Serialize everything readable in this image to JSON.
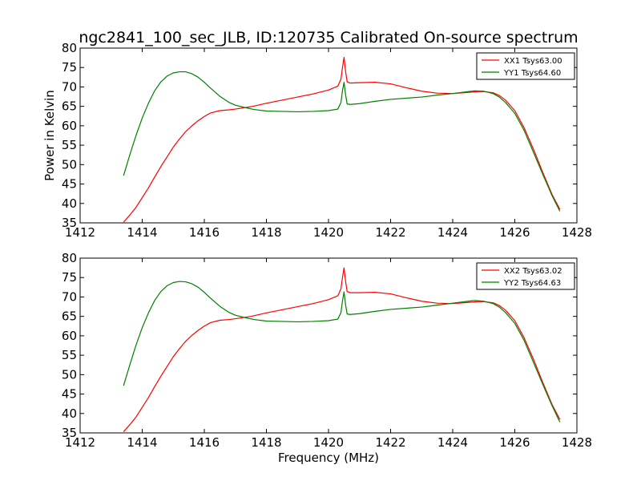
{
  "figure": {
    "title": "ngc2841_100_sec_JLB, ID:120735 Calibrated On-source spectrum"
  },
  "colors": {
    "xx": "#ff0000",
    "yy": "#008000"
  },
  "chart_data": [
    {
      "type": "line",
      "title": "ngc2841_100_sec_JLB, ID:120735 Calibrated On-source spectrum",
      "xlabel": "",
      "ylabel": "Power in Kelvin",
      "xlim": [
        1412,
        1428
      ],
      "ylim": [
        35,
        80
      ],
      "xticks": [
        1412,
        1414,
        1416,
        1418,
        1420,
        1422,
        1424,
        1426,
        1428
      ],
      "yticks": [
        35,
        40,
        45,
        50,
        55,
        60,
        65,
        70,
        75,
        80
      ],
      "grid": false,
      "legend": "top-right",
      "series": [
        {
          "name": "XX1 Tsys63.00",
          "color": "#ff0000",
          "x": [
            1413.4,
            1413.6,
            1413.8,
            1414.0,
            1414.2,
            1414.4,
            1414.6,
            1414.8,
            1415.0,
            1415.2,
            1415.4,
            1415.6,
            1415.8,
            1416.0,
            1416.2,
            1416.5,
            1416.8,
            1417.0,
            1417.5,
            1418.0,
            1418.5,
            1419.0,
            1419.5,
            1420.0,
            1420.3,
            1420.4,
            1420.45,
            1420.5,
            1420.55,
            1420.6,
            1420.7,
            1421.0,
            1421.5,
            1422.0,
            1422.5,
            1423.0,
            1423.5,
            1424.0,
            1424.5,
            1424.8,
            1425.0,
            1425.3,
            1425.5,
            1425.7,
            1426.0,
            1426.3,
            1426.6,
            1426.9,
            1427.2,
            1427.45
          ],
          "y": [
            35.2,
            37.0,
            39.0,
            41.5,
            44.0,
            46.8,
            49.5,
            52.0,
            54.5,
            56.6,
            58.5,
            60.0,
            61.3,
            62.4,
            63.3,
            63.9,
            64.1,
            64.3,
            64.9,
            65.8,
            66.6,
            67.4,
            68.2,
            69.2,
            70.2,
            72.0,
            75.0,
            77.6,
            74.0,
            71.3,
            71.0,
            71.1,
            71.2,
            70.8,
            69.8,
            68.9,
            68.4,
            68.3,
            68.6,
            68.8,
            68.8,
            68.5,
            67.8,
            66.6,
            63.9,
            59.5,
            54.0,
            48.0,
            42.3,
            38.5
          ]
        },
        {
          "name": "YY1 Tsys64.60",
          "color": "#008000",
          "x": [
            1413.4,
            1413.6,
            1413.8,
            1414.0,
            1414.2,
            1414.4,
            1414.6,
            1414.8,
            1415.0,
            1415.2,
            1415.4,
            1415.6,
            1415.8,
            1416.0,
            1416.2,
            1416.5,
            1416.8,
            1417.0,
            1417.3,
            1417.6,
            1418.0,
            1418.5,
            1419.0,
            1419.5,
            1420.0,
            1420.3,
            1420.4,
            1420.45,
            1420.5,
            1420.55,
            1420.6,
            1420.7,
            1421.0,
            1421.5,
            1422.0,
            1422.5,
            1423.0,
            1423.5,
            1424.0,
            1424.5,
            1424.7,
            1425.0,
            1425.3,
            1425.5,
            1425.7,
            1426.0,
            1426.3,
            1426.6,
            1426.9,
            1427.2,
            1427.45
          ],
          "y": [
            47.2,
            52.5,
            57.5,
            62.0,
            65.8,
            69.0,
            71.3,
            72.8,
            73.6,
            73.9,
            73.9,
            73.4,
            72.5,
            71.2,
            69.7,
            67.6,
            66.0,
            65.3,
            64.7,
            64.2,
            63.8,
            63.7,
            63.6,
            63.7,
            63.9,
            64.3,
            66.0,
            69.0,
            71.2,
            68.0,
            65.6,
            65.5,
            65.7,
            66.3,
            66.8,
            67.1,
            67.4,
            67.9,
            68.3,
            68.8,
            69.0,
            68.9,
            68.3,
            67.4,
            66.0,
            63.2,
            58.8,
            53.2,
            47.5,
            42.0,
            38.0
          ]
        }
      ]
    },
    {
      "type": "line",
      "title": "",
      "xlabel": "Frequency (MHz)",
      "ylabel": "",
      "xlim": [
        1412,
        1428
      ],
      "ylim": [
        35,
        80
      ],
      "xticks": [
        1412,
        1414,
        1416,
        1418,
        1420,
        1422,
        1424,
        1426,
        1428
      ],
      "yticks": [
        35,
        40,
        45,
        50,
        55,
        60,
        65,
        70,
        75,
        80
      ],
      "grid": false,
      "legend": "top-right",
      "series": [
        {
          "name": "XX2 Tsys63.02",
          "color": "#ff0000",
          "x": [
            1413.4,
            1413.6,
            1413.8,
            1414.0,
            1414.2,
            1414.4,
            1414.6,
            1414.8,
            1415.0,
            1415.2,
            1415.4,
            1415.6,
            1415.8,
            1416.0,
            1416.2,
            1416.5,
            1416.8,
            1417.0,
            1417.5,
            1418.0,
            1418.5,
            1419.0,
            1419.5,
            1420.0,
            1420.3,
            1420.4,
            1420.45,
            1420.5,
            1420.55,
            1420.6,
            1420.7,
            1421.0,
            1421.5,
            1422.0,
            1422.5,
            1423.0,
            1423.5,
            1424.0,
            1424.5,
            1424.8,
            1425.0,
            1425.3,
            1425.5,
            1425.7,
            1426.0,
            1426.3,
            1426.6,
            1426.9,
            1427.2,
            1427.45
          ],
          "y": [
            35.3,
            37.1,
            39.1,
            41.6,
            44.1,
            46.9,
            49.6,
            52.1,
            54.6,
            56.7,
            58.6,
            60.1,
            61.4,
            62.5,
            63.4,
            64.0,
            64.2,
            64.4,
            65.0,
            65.9,
            66.7,
            67.5,
            68.3,
            69.3,
            70.3,
            72.1,
            75.0,
            77.5,
            74.0,
            71.4,
            71.1,
            71.1,
            71.2,
            70.8,
            69.8,
            68.9,
            68.4,
            68.3,
            68.6,
            68.8,
            68.8,
            68.5,
            67.8,
            66.6,
            63.9,
            59.5,
            54.0,
            48.0,
            42.3,
            38.5
          ]
        },
        {
          "name": "YY2 Tsys64.63",
          "color": "#008000",
          "x": [
            1413.4,
            1413.6,
            1413.8,
            1414.0,
            1414.2,
            1414.4,
            1414.6,
            1414.8,
            1415.0,
            1415.2,
            1415.4,
            1415.6,
            1415.8,
            1416.0,
            1416.2,
            1416.5,
            1416.8,
            1417.0,
            1417.3,
            1417.6,
            1418.0,
            1418.5,
            1419.0,
            1419.5,
            1420.0,
            1420.3,
            1420.4,
            1420.45,
            1420.5,
            1420.55,
            1420.6,
            1420.7,
            1421.0,
            1421.5,
            1422.0,
            1422.5,
            1423.0,
            1423.5,
            1424.0,
            1424.5,
            1424.7,
            1425.0,
            1425.3,
            1425.5,
            1425.7,
            1426.0,
            1426.3,
            1426.6,
            1426.9,
            1427.2,
            1427.45
          ],
          "y": [
            47.2,
            52.5,
            57.6,
            62.1,
            65.9,
            69.1,
            71.4,
            72.9,
            73.7,
            74.0,
            73.9,
            73.4,
            72.5,
            71.2,
            69.7,
            67.6,
            66.0,
            65.3,
            64.7,
            64.2,
            63.8,
            63.7,
            63.6,
            63.7,
            63.9,
            64.3,
            66.0,
            69.0,
            71.3,
            68.0,
            65.6,
            65.5,
            65.7,
            66.3,
            66.8,
            67.1,
            67.4,
            67.9,
            68.4,
            68.9,
            69.1,
            68.9,
            68.3,
            67.4,
            66.0,
            63.2,
            58.8,
            53.2,
            47.5,
            42.0,
            37.8
          ]
        }
      ]
    }
  ]
}
